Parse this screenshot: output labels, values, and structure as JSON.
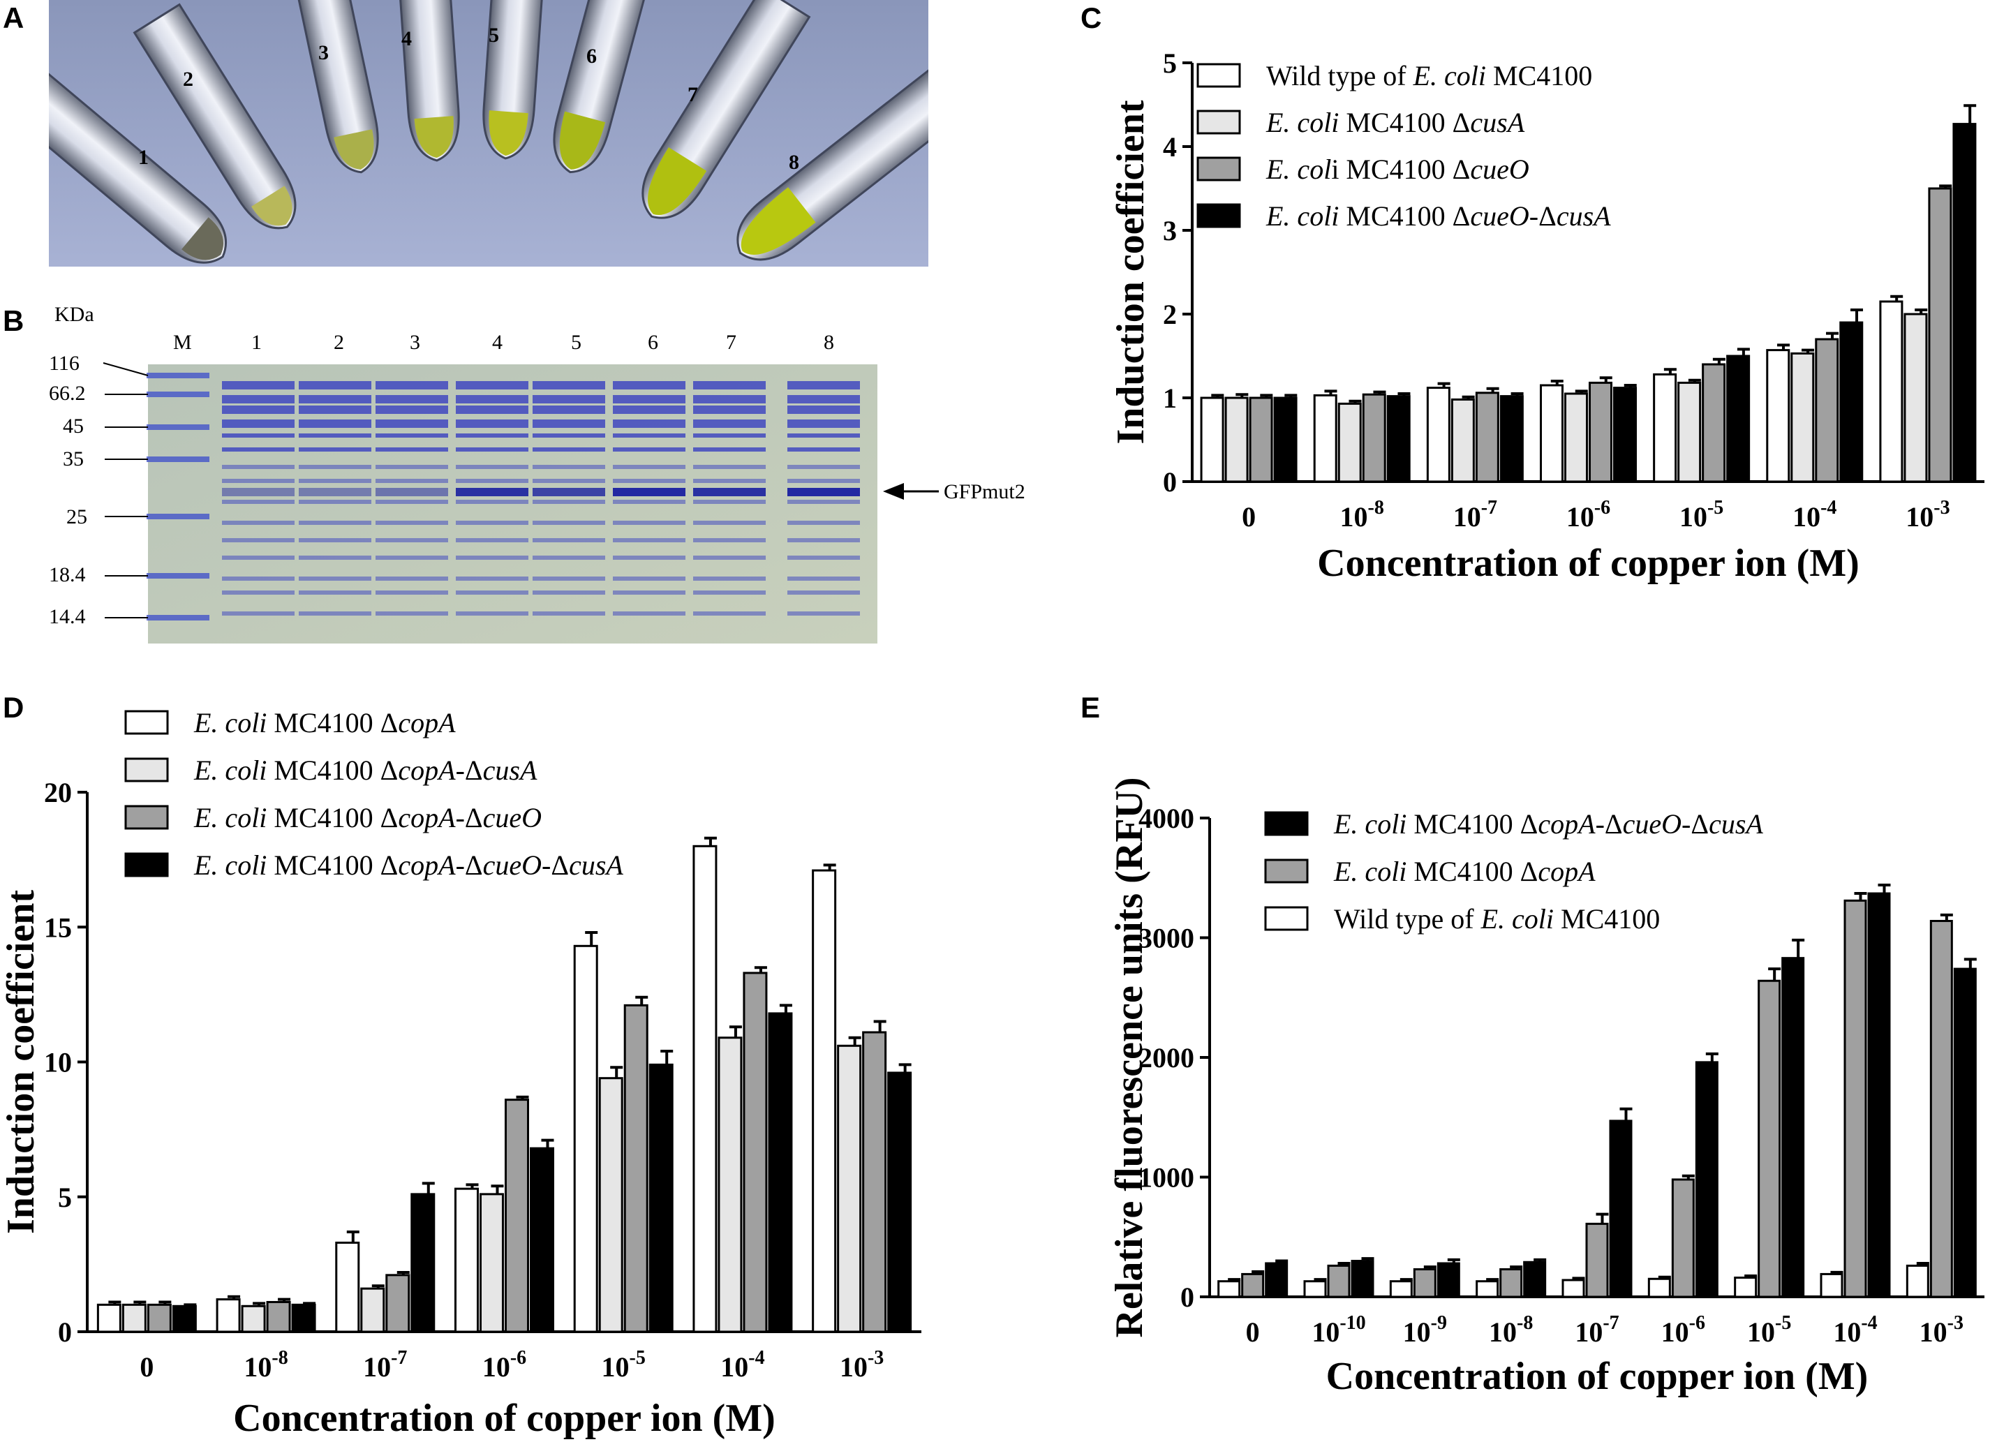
{
  "panels": {
    "A": "A",
    "B": "B",
    "C": "C",
    "D": "D",
    "E": "E"
  },
  "panel_a": {
    "tubes": [
      "1",
      "2",
      "3",
      "4",
      "5",
      "6",
      "7",
      "8"
    ]
  },
  "panel_b": {
    "unit": "KDa",
    "marker_label": "M",
    "lanes": [
      "1",
      "2",
      "3",
      "4",
      "5",
      "6",
      "7",
      "8"
    ],
    "markers": [
      "116",
      "66.2",
      "45",
      "35",
      "25",
      "18.4",
      "14.4"
    ],
    "band_label": "GFPmut2"
  },
  "chart_data": [
    {
      "id": "C",
      "type": "bar",
      "title": "",
      "xlabel": "Concentration of copper ion (M)",
      "ylabel": "Induction coefficient",
      "categories": [
        "0",
        "10-8",
        "10-7",
        "10-6",
        "10-5",
        "10-4",
        "10-3"
      ],
      "category_labels": [
        {
          "base": "0",
          "exp": ""
        },
        {
          "base": "10",
          "exp": "-8"
        },
        {
          "base": "10",
          "exp": "-7"
        },
        {
          "base": "10",
          "exp": "-6"
        },
        {
          "base": "10",
          "exp": "-5"
        },
        {
          "base": "10",
          "exp": "-4"
        },
        {
          "base": "10",
          "exp": "-3"
        }
      ],
      "ylim": [
        0,
        5
      ],
      "yticks": [
        0,
        1,
        2,
        3,
        4,
        5
      ],
      "legend_position": "top-left",
      "series": [
        {
          "name": "Wild type of E. coli MC4100",
          "legend_parts": [
            [
              "Wild type of ",
              false
            ],
            [
              "E. coli",
              true
            ],
            [
              " MC4100",
              false
            ]
          ],
          "color": "#ffffff",
          "values": [
            1.0,
            1.03,
            1.12,
            1.15,
            1.28,
            1.57,
            2.15
          ],
          "errors": [
            0.03,
            0.05,
            0.05,
            0.05,
            0.06,
            0.06,
            0.06
          ]
        },
        {
          "name": "E. coli MC4100 ΔcusA",
          "legend_parts": [
            [
              "E. coli",
              true
            ],
            [
              " MC4100 Δ",
              false
            ],
            [
              "cusA",
              true
            ]
          ],
          "color": "#e6e6e6",
          "values": [
            1.0,
            0.93,
            0.98,
            1.05,
            1.18,
            1.53,
            2.0
          ],
          "errors": [
            0.04,
            0.03,
            0.03,
            0.03,
            0.03,
            0.04,
            0.05
          ]
        },
        {
          "name": "E. coli MC4100 ΔcueO",
          "legend_parts": [
            [
              "E. col",
              true
            ],
            [
              "i MC4100 Δ",
              false
            ],
            [
              "cueO",
              true
            ]
          ],
          "color": "#a0a0a0",
          "values": [
            1.0,
            1.04,
            1.06,
            1.18,
            1.4,
            1.7,
            3.5
          ],
          "errors": [
            0.03,
            0.03,
            0.05,
            0.06,
            0.06,
            0.07,
            0.03
          ]
        },
        {
          "name": "E. coli MC4100 ΔcueO-ΔcusA",
          "legend_parts": [
            [
              "E. coli",
              true
            ],
            [
              " MC4100 Δ",
              false
            ],
            [
              "cueO",
              true
            ],
            [
              "-Δ",
              false
            ],
            [
              "cusA",
              true
            ]
          ],
          "color": "#000000",
          "values": [
            1.0,
            1.02,
            1.02,
            1.12,
            1.5,
            1.9,
            4.27
          ],
          "errors": [
            0.03,
            0.03,
            0.03,
            0.03,
            0.08,
            0.15,
            0.22
          ]
        }
      ]
    },
    {
      "id": "D",
      "type": "bar",
      "title": "",
      "xlabel": "Concentration of copper ion (M)",
      "ylabel": "Induction coefficient",
      "categories": [
        "0",
        "10-8",
        "10-7",
        "10-6",
        "10-5",
        "10-4",
        "10-3"
      ],
      "category_labels": [
        {
          "base": "0",
          "exp": ""
        },
        {
          "base": "10",
          "exp": "-8"
        },
        {
          "base": "10",
          "exp": "-7"
        },
        {
          "base": "10",
          "exp": "-6"
        },
        {
          "base": "10",
          "exp": "-5"
        },
        {
          "base": "10",
          "exp": "-4"
        },
        {
          "base": "10",
          "exp": "-3"
        }
      ],
      "ylim": [
        0,
        20
      ],
      "yticks": [
        0,
        5,
        10,
        15,
        20
      ],
      "legend_position": "top-left",
      "series": [
        {
          "name": "E. coli MC4100 ΔcopA",
          "legend_parts": [
            [
              "E. coli",
              true
            ],
            [
              " MC4100 Δ",
              false
            ],
            [
              "copA",
              true
            ]
          ],
          "color": "#ffffff",
          "values": [
            1.0,
            1.2,
            3.3,
            5.3,
            14.3,
            18.0,
            17.1
          ],
          "errors": [
            0.1,
            0.1,
            0.4,
            0.15,
            0.5,
            0.3,
            0.2
          ]
        },
        {
          "name": "E. coli MC4100 ΔcopA-ΔcusA",
          "legend_parts": [
            [
              "E. coli",
              true
            ],
            [
              " MC4100 Δ",
              false
            ],
            [
              "copA",
              true
            ],
            [
              "-Δ",
              false
            ],
            [
              "cusA",
              true
            ]
          ],
          "color": "#e6e6e6",
          "values": [
            1.0,
            0.95,
            1.6,
            5.1,
            9.4,
            10.9,
            10.6
          ],
          "errors": [
            0.1,
            0.1,
            0.1,
            0.3,
            0.4,
            0.4,
            0.3
          ]
        },
        {
          "name": "E. coli MC4100 ΔcopA-ΔcueO",
          "legend_parts": [
            [
              "E. coli",
              true
            ],
            [
              " MC4100 Δ",
              false
            ],
            [
              "copA",
              true
            ],
            [
              "-Δ",
              false
            ],
            [
              "cueO",
              true
            ]
          ],
          "color": "#a0a0a0",
          "values": [
            1.0,
            1.1,
            2.1,
            8.6,
            12.1,
            13.3,
            11.1
          ],
          "errors": [
            0.1,
            0.1,
            0.1,
            0.1,
            0.3,
            0.2,
            0.4
          ]
        },
        {
          "name": "E. coli MC4100 ΔcopA-ΔcueO-ΔcusA",
          "legend_parts": [
            [
              "E. coli",
              true
            ],
            [
              " MC4100 Δ",
              false
            ],
            [
              "copA",
              true
            ],
            [
              "-Δ",
              false
            ],
            [
              "cueO",
              true
            ],
            [
              "-Δ",
              false
            ],
            [
              "cusA",
              true
            ]
          ],
          "color": "#000000",
          "values": [
            0.95,
            1.0,
            5.1,
            6.8,
            9.9,
            11.8,
            9.6
          ],
          "errors": [
            0.05,
            0.05,
            0.4,
            0.3,
            0.5,
            0.3,
            0.3
          ]
        }
      ]
    },
    {
      "id": "E",
      "type": "bar",
      "title": "",
      "xlabel": "Concentration of copper ion (M)",
      "ylabel": "Relative fluorescence units (RFU)",
      "categories": [
        "0",
        "10-10",
        "10-9",
        "10-8",
        "10-7",
        "10-6",
        "10-5",
        "10-4",
        "10-3"
      ],
      "category_labels": [
        {
          "base": "0",
          "exp": ""
        },
        {
          "base": "10",
          "exp": "-10"
        },
        {
          "base": "10",
          "exp": "-9"
        },
        {
          "base": "10",
          "exp": "-8"
        },
        {
          "base": "10",
          "exp": "-7"
        },
        {
          "base": "10",
          "exp": "-6"
        },
        {
          "base": "10",
          "exp": "-5"
        },
        {
          "base": "10",
          "exp": "-4"
        },
        {
          "base": "10",
          "exp": "-3"
        }
      ],
      "ylim": [
        0,
        4000
      ],
      "yticks": [
        0,
        1000,
        2000,
        3000,
        4000
      ],
      "legend_position": "top-left",
      "legend_order": [
        2,
        1,
        0
      ],
      "series": [
        {
          "name": "Wild type of E. coli MC4100",
          "legend_parts": [
            [
              "Wild type of ",
              false
            ],
            [
              "E. coli",
              true
            ],
            [
              " MC4100",
              false
            ]
          ],
          "color": "#ffffff",
          "values": [
            130,
            130,
            130,
            130,
            140,
            150,
            160,
            190,
            260
          ],
          "errors": [
            15,
            15,
            15,
            15,
            15,
            15,
            15,
            15,
            20
          ]
        },
        {
          "name": "E. coli MC4100 ΔcopA",
          "legend_parts": [
            [
              "E. coli",
              true
            ],
            [
              " MC4100 Δ",
              false
            ],
            [
              "copA",
              true
            ]
          ],
          "color": "#a0a0a0",
          "values": [
            190,
            260,
            230,
            230,
            610,
            980,
            2640,
            3310,
            3140
          ],
          "errors": [
            20,
            20,
            20,
            20,
            80,
            30,
            100,
            60,
            50
          ]
        },
        {
          "name": "E. coli MC4100 ΔcopA-ΔcueO-ΔcusA",
          "legend_parts": [
            [
              "E. coli",
              true
            ],
            [
              " MC4100 Δ",
              false
            ],
            [
              "copA",
              true
            ],
            [
              "-Δ",
              false
            ],
            [
              "cueO",
              true
            ],
            [
              "-Δ",
              false
            ],
            [
              "cusA",
              true
            ]
          ],
          "color": "#000000",
          "values": [
            280,
            300,
            280,
            290,
            1470,
            1960,
            2830,
            3370,
            2740
          ],
          "errors": [
            20,
            20,
            30,
            20,
            100,
            70,
            150,
            70,
            80
          ]
        }
      ]
    }
  ]
}
